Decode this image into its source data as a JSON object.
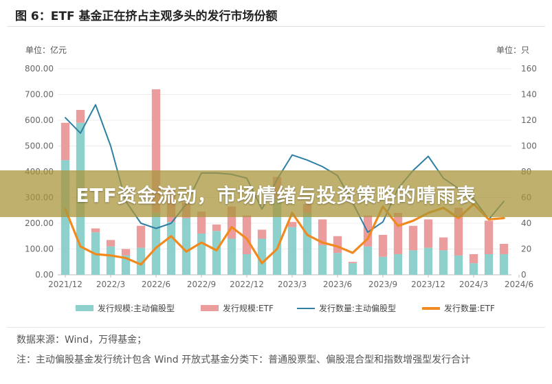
{
  "page": {
    "title": "图 6：ETF 基金正在挤占主观多头的发行市场份额",
    "left_unit": "单位：亿元",
    "right_unit": "单位：只",
    "banner": "ETF资金流动，市场情绪与投资策略的晴雨表",
    "source_note": "数据来源：Wind，万得基金；",
    "footnote": "注：主动偏股基金发行统计包含 Wind 开放式基金分类下：普通股票型、偏股混合型和指数增强型发行合计"
  },
  "chart_data": {
    "type": "bar",
    "stacked": true,
    "title": "图 6：ETF 基金正在挤占主观多头的发行市场份额",
    "y_left": {
      "label": "单位：亿元",
      "range": [
        0,
        800
      ],
      "ticks": [
        "0.00",
        "100.00",
        "200.00",
        "300.00",
        "400.00",
        "500.00",
        "600.00",
        "700.00",
        "800.00"
      ]
    },
    "y_right": {
      "label": "单位：只",
      "range": [
        0,
        160
      ],
      "ticks": [
        "0",
        "20",
        "40",
        "60",
        "80",
        "100",
        "120",
        "140",
        "160"
      ]
    },
    "x_tick_labels": [
      "2021/12",
      "2022/3",
      "2022/6",
      "2022/9",
      "2022/12",
      "2023/3",
      "2023/6",
      "2023/9",
      "2023/12",
      "2024/3",
      "2024/6"
    ],
    "months": [
      "2021/12",
      "2022/1",
      "2022/2",
      "2022/3",
      "2022/4",
      "2022/5",
      "2022/6",
      "2022/7",
      "2022/8",
      "2022/9",
      "2022/10",
      "2022/11",
      "2022/12",
      "2023/1",
      "2023/2",
      "2023/3",
      "2023/4",
      "2023/5",
      "2023/6",
      "2023/7",
      "2023/8",
      "2023/9",
      "2023/10",
      "2023/11",
      "2023/12",
      "2024/1",
      "2024/2",
      "2024/3",
      "2024/4",
      "2024/5"
    ],
    "grid": true,
    "legend_position": "bottom",
    "series": [
      {
        "name": "发行规模:主动偏股型",
        "kind": "bar",
        "axis": "left",
        "color": "#8ed0cc",
        "values": [
          445,
          590,
          165,
          110,
          75,
          105,
          240,
          205,
          220,
          160,
          170,
          140,
          80,
          140,
          295,
          185,
          240,
          115,
          85,
          45,
          110,
          70,
          80,
          95,
          105,
          95,
          75,
          45,
          80,
          80
        ]
      },
      {
        "name": "发行规模:ETF",
        "kind": "bar",
        "axis": "left",
        "color": "#eb9c9c",
        "values": [
          145,
          50,
          15,
          25,
          25,
          85,
          480,
          125,
          60,
          85,
          25,
          125,
          150,
          35,
          85,
          20,
          35,
          100,
          65,
          5,
          120,
          85,
          160,
          95,
          110,
          50,
          185,
          35,
          130,
          40
        ]
      },
      {
        "name": "发行数量:主动偏股型",
        "kind": "line",
        "axis": "right",
        "color": "#2e7fa3",
        "values": [
          122,
          110,
          132,
          100,
          57,
          40,
          36,
          40,
          55,
          79,
          79,
          78,
          75,
          51,
          74,
          93,
          89,
          84,
          77,
          56,
          33,
          41,
          67,
          81,
          92,
          75,
          67,
          59,
          43,
          57
        ]
      },
      {
        "name": "发行数量:ETF",
        "kind": "line",
        "axis": "right",
        "color": "#f08a1e",
        "values": [
          51,
          22,
          16,
          15,
          13,
          8,
          21,
          30,
          18,
          25,
          19,
          37,
          28,
          9,
          20,
          48,
          31,
          25,
          22,
          17,
          28,
          53,
          38,
          42,
          48,
          52,
          44,
          55,
          43,
          44
        ]
      }
    ]
  }
}
